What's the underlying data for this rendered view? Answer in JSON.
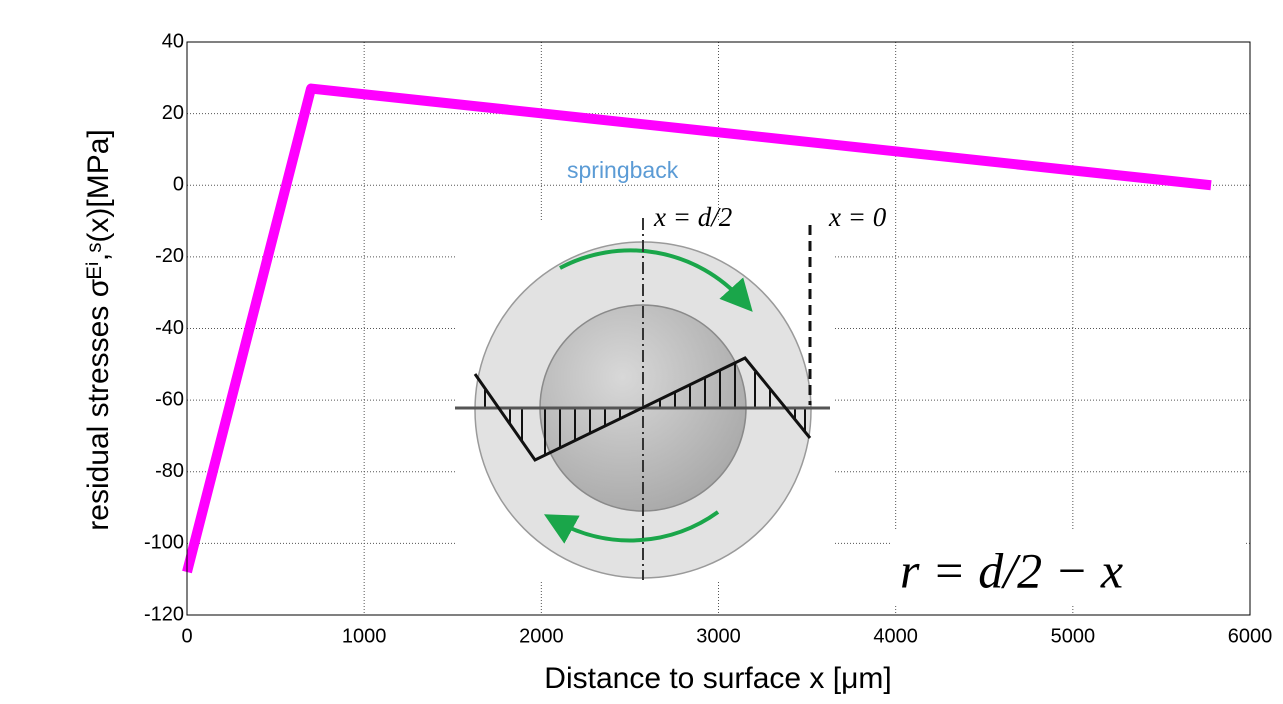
{
  "chart_data": {
    "type": "line",
    "x_label": "Distance to surface x [μm]",
    "y_label": "residual stresses σᴱⁱ,ˢ(x)[MPa]",
    "x": [
      0,
      700,
      5780
    ],
    "values": [
      -108,
      27,
      0
    ],
    "color": "#ff00ff",
    "xlim": [
      0,
      6000
    ],
    "xticks": [
      0,
      1000,
      2000,
      3000,
      4000,
      5000,
      6000
    ],
    "ylim": [
      -120,
      40
    ],
    "yticks": [
      40,
      20,
      0,
      -20,
      -40,
      -60,
      -80,
      -100,
      -120
    ],
    "grid": true,
    "annotations": [
      "springback",
      "x = d/2",
      "x = 0",
      "r = d/2 − x"
    ]
  }
}
